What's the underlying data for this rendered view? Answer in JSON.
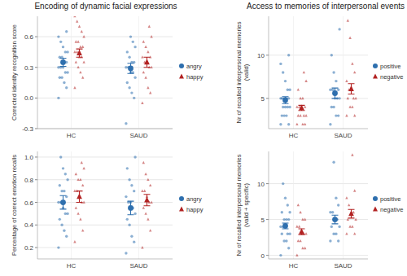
{
  "chart_data": [
    {
      "type": "scatter",
      "title": "Encoding of dynamic facial expressions",
      "y_label": "Corrected identity recognition score",
      "categories": [
        "HC",
        "SAUD"
      ],
      "ylim": [
        -0.3,
        0.8
      ],
      "yticks": [
        -0.3,
        {
          "value": 0,
          "label": "0.0"
        },
        0.3,
        0.6
      ],
      "grid": true,
      "legend": "right",
      "series": [
        {
          "name": "angry",
          "color": "#2e6fae",
          "marker": "circle",
          "values": [
            [
              0.0,
              0.1,
              0.15,
              0.2,
              0.2,
              0.25,
              0.25,
              0.3,
              0.3,
              0.3,
              0.35,
              0.35,
              0.4,
              0.4,
              0.45,
              0.45,
              0.5,
              0.55,
              0.6,
              0.65
            ],
            [
              -0.25,
              0.0,
              0.05,
              0.1,
              0.15,
              0.2,
              0.25,
              0.25,
              0.3,
              0.3,
              0.35,
              0.35,
              0.4,
              0.45,
              0.5,
              0.55,
              0.6
            ]
          ],
          "mean": [
            0.35,
            0.29
          ],
          "error": [
            0.04,
            0.05
          ]
        },
        {
          "name": "happy",
          "color": "#b22222",
          "marker": "triangle",
          "values": [
            [
              0.1,
              0.2,
              0.25,
              0.3,
              0.35,
              0.35,
              0.4,
              0.4,
              0.45,
              0.45,
              0.5,
              0.5,
              0.55,
              0.55,
              0.6,
              0.65,
              0.7,
              0.75,
              0.8
            ],
            [
              -0.05,
              0.05,
              0.1,
              0.2,
              0.25,
              0.3,
              0.3,
              0.35,
              0.35,
              0.4,
              0.4,
              0.45,
              0.5,
              0.55,
              0.6,
              0.7
            ]
          ],
          "mean": [
            0.44,
            0.35
          ],
          "error": [
            0.04,
            0.05
          ]
        }
      ]
    },
    {
      "type": "scatter",
      "y_label": "Percentage of correct emotion recalls",
      "categories": [
        "HC",
        "SAUD"
      ],
      "ylim": [
        0.1,
        1.05
      ],
      "yticks": [
        0.2,
        0.4,
        0.6,
        0.8,
        {
          "value": 1,
          "label": "1.0"
        }
      ],
      "grid": true,
      "legend": "right",
      "series": [
        {
          "name": "angry",
          "color": "#2e6fae",
          "marker": "circle",
          "values": [
            [
              0.2,
              0.3,
              0.35,
              0.4,
              0.45,
              0.5,
              0.5,
              0.55,
              0.6,
              0.6,
              0.65,
              0.7,
              0.7,
              0.75,
              0.8,
              0.85,
              0.9,
              1.0
            ],
            [
              0.15,
              0.25,
              0.3,
              0.4,
              0.45,
              0.5,
              0.55,
              0.6,
              0.6,
              0.65,
              0.7,
              0.75,
              0.8,
              0.9,
              1.0
            ]
          ],
          "mean": [
            0.6,
            0.55
          ],
          "error": [
            0.06,
            0.06
          ]
        },
        {
          "name": "happy",
          "color": "#b22222",
          "marker": "triangle",
          "values": [
            [
              0.25,
              0.35,
              0.45,
              0.5,
              0.55,
              0.6,
              0.6,
              0.65,
              0.7,
              0.7,
              0.75,
              0.8,
              0.8,
              0.85,
              0.9,
              0.95
            ],
            [
              0.2,
              0.35,
              0.45,
              0.5,
              0.55,
              0.6,
              0.6,
              0.65,
              0.7,
              0.7,
              0.75,
              0.8,
              0.85,
              0.95
            ]
          ],
          "mean": [
            0.65,
            0.62
          ],
          "error": [
            0.05,
            0.05
          ]
        }
      ]
    },
    {
      "type": "scatter",
      "title": "Access to memories of interpersonal events",
      "y_label": "Nr of recalled interpersonal memories (valid)",
      "categories": [
        "HC",
        "SAUD"
      ],
      "ylim": [
        1.5,
        14.5
      ],
      "yticks": [
        5,
        10
      ],
      "grid": true,
      "legend": "right",
      "series": [
        {
          "name": "positive",
          "color": "#2e6fae",
          "marker": "circle",
          "values": [
            [
              2,
              2,
              3,
              3,
              3,
              4,
              4,
              4,
              4,
              5,
              5,
              5,
              5,
              5,
              6,
              6,
              7,
              8,
              9,
              10
            ],
            [
              2,
              3,
              3,
              4,
              4,
              5,
              5,
              5,
              6,
              6,
              6,
              7,
              8,
              10,
              13
            ]
          ],
          "mean": [
            4.8,
            5.6
          ],
          "error": [
            0.4,
            0.6
          ]
        },
        {
          "name": "negative",
          "color": "#b22222",
          "marker": "triangle",
          "values": [
            [
              2,
              2,
              2,
              3,
              3,
              3,
              3,
              4,
              4,
              4,
              4,
              5,
              5,
              6,
              7,
              8
            ],
            [
              3,
              3,
              4,
              4,
              5,
              5,
              5,
              6,
              6,
              7,
              8,
              9,
              12,
              14
            ]
          ],
          "mean": [
            3.9,
            6.1
          ],
          "error": [
            0.3,
            0.6
          ]
        }
      ]
    },
    {
      "type": "scatter",
      "y_label": "Nr of recalled interpersonal memories (valid + specific)",
      "categories": [
        "HC",
        "SAUD"
      ],
      "ylim": [
        -0.5,
        14.5
      ],
      "yticks": [
        0,
        5,
        10
      ],
      "grid": true,
      "legend": "right",
      "series": [
        {
          "name": "positive",
          "color": "#2e6fae",
          "marker": "circle",
          "values": [
            [
              0,
              1,
              2,
              2,
              3,
              3,
              3,
              4,
              4,
              4,
              5,
              5,
              5,
              6,
              6,
              7,
              8,
              10
            ],
            [
              2,
              2,
              3,
              3,
              4,
              4,
              5,
              5,
              6,
              6,
              7,
              8,
              13
            ]
          ],
          "mean": [
            4.1,
            5.0
          ],
          "error": [
            0.4,
            0.6
          ]
        },
        {
          "name": "negative",
          "color": "#b22222",
          "marker": "triangle",
          "values": [
            [
              0,
              1,
              1,
              2,
              2,
              3,
              3,
              3,
              4,
              4,
              5,
              5,
              6,
              7
            ],
            [
              3,
              3,
              4,
              4,
              5,
              5,
              6,
              6,
              7,
              8,
              9,
              14
            ]
          ],
          "mean": [
            3.3,
            5.8
          ],
          "error": [
            0.4,
            0.6
          ]
        }
      ]
    }
  ]
}
